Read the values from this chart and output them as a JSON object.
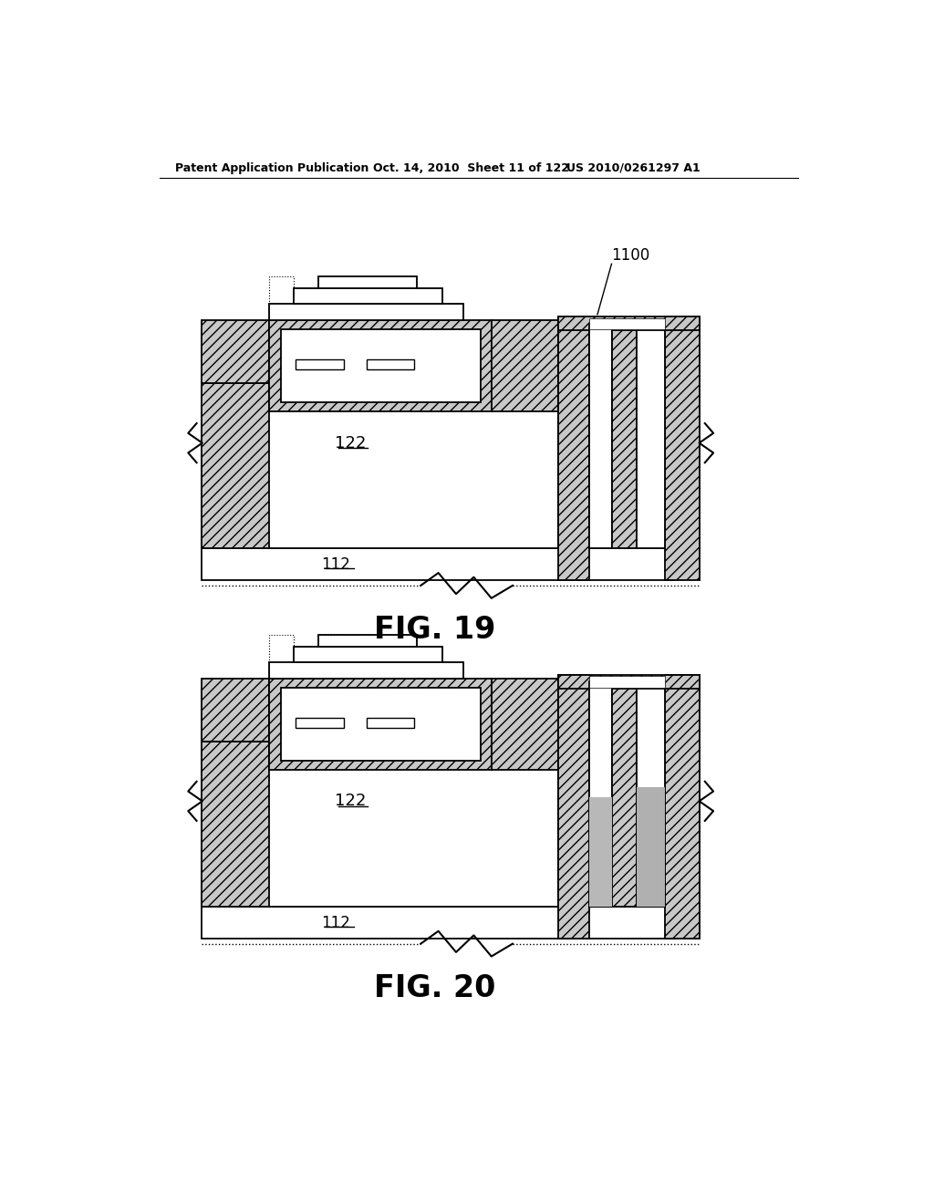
{
  "header_left": "Patent Application Publication",
  "header_mid": "Oct. 14, 2010  Sheet 11 of 122",
  "header_right": "US 2010/0261297 A1",
  "fig19_label": "FIG. 19",
  "fig20_label": "FIG. 20",
  "label_1100": "1100",
  "label_122": "122",
  "label_112": "112",
  "bg_color": "#ffffff",
  "line_color": "#000000",
  "hatch_fc": "#c8c8c8",
  "gray_fill": "#c0c0c0"
}
